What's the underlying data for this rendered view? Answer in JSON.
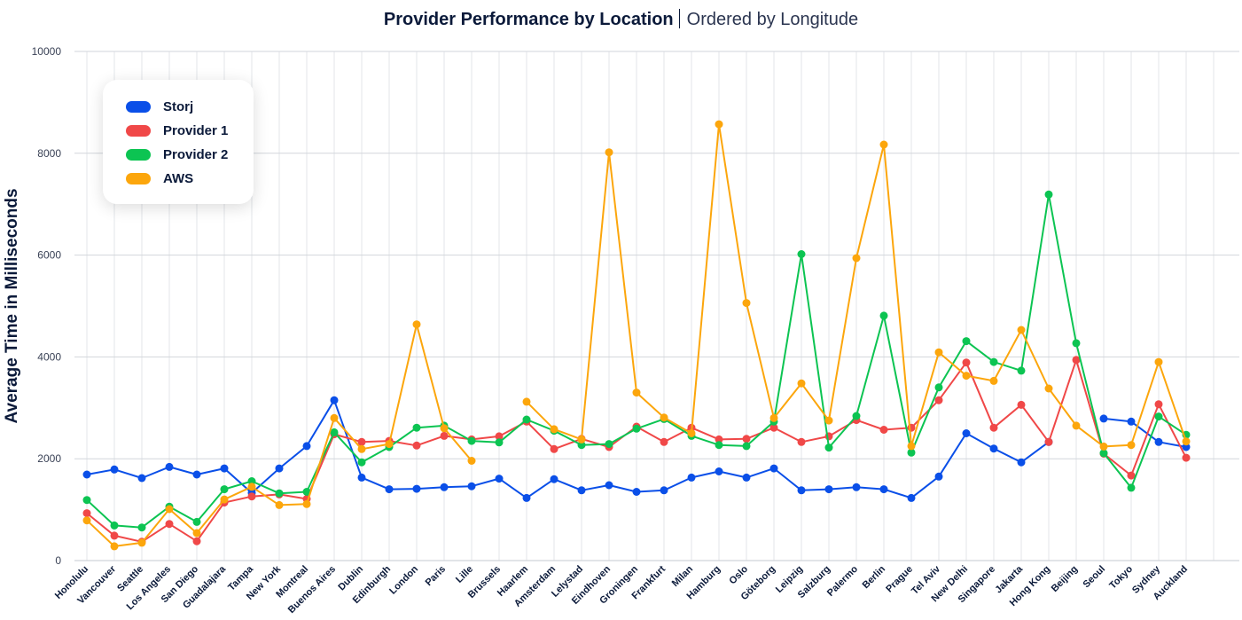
{
  "title": "Provider Performance by Location",
  "subtitle": "Ordered by Longitude",
  "legend": {
    "items": [
      {
        "label": "Storj",
        "color": "#0a4fe8"
      },
      {
        "label": "Provider 1",
        "color": "#f04848"
      },
      {
        "label": "Provider 2",
        "color": "#0cc452"
      },
      {
        "label": "AWS",
        "color": "#fca60c"
      }
    ]
  },
  "chart_data": {
    "type": "line",
    "title": "Provider Performance by Location",
    "subtitle": "Ordered by Longitude",
    "xlabel": "",
    "ylabel": "Average Time in Milliseconds",
    "ylim": [
      0,
      10000
    ],
    "yticks": [
      0,
      2000,
      4000,
      6000,
      8000,
      10000
    ],
    "grid": true,
    "legend_position": "top-left",
    "categories": [
      "Honolulu",
      "Vancouver",
      "Seattle",
      "Los Angeles",
      "San Diego",
      "Guadalajara",
      "Tampa",
      "New York",
      "Montreal",
      "Buenos Aires",
      "Dublin",
      "Edinburgh",
      "London",
      "Paris",
      "Lille",
      "Brussels",
      "Haarlem",
      "Amsterdam",
      "Lelystad",
      "Eindhoven",
      "Groningen",
      "Frankfurt",
      "Milan",
      "Hamburg",
      "Oslo",
      "Göteborg",
      "Leipzig",
      "Salzburg",
      "Palermo",
      "Berlin",
      "Prague",
      "Tel Aviv",
      "New Delhi",
      "Singapore",
      "Jakarta",
      "Hong Kong",
      "Beijing",
      "Seoul",
      "Tokyo",
      "Sydney",
      "Auckland"
    ],
    "series": [
      {
        "name": "Storj",
        "color": "#0a4fe8",
        "values": [
          1690,
          1790,
          1620,
          1840,
          1690,
          1810,
          1330,
          1810,
          2250,
          3150,
          1630,
          1400,
          1410,
          1440,
          1460,
          1610,
          1230,
          1600,
          1380,
          1480,
          1350,
          1380,
          1630,
          1750,
          1630,
          1810,
          1380,
          1400,
          1440,
          1400,
          1230,
          1650,
          2500,
          2200,
          1930,
          2330,
          null,
          2790,
          2730,
          2330,
          2230
        ]
      },
      {
        "name": "Provider 1",
        "color": "#f04848",
        "values": [
          930,
          490,
          370,
          720,
          380,
          1140,
          1260,
          1300,
          1210,
          2480,
          2330,
          2350,
          2260,
          2450,
          2380,
          2440,
          2730,
          2190,
          2390,
          2230,
          2630,
          2330,
          2610,
          2380,
          2390,
          2610,
          2330,
          2440,
          2760,
          2570,
          2610,
          3150,
          3890,
          2610,
          3060,
          2330,
          3940,
          2100,
          1670,
          3070,
          2020
        ]
      },
      {
        "name": "Provider 2",
        "color": "#0cc452",
        "values": [
          1190,
          690,
          650,
          1060,
          760,
          1400,
          1560,
          1320,
          1350,
          2520,
          1930,
          2230,
          2610,
          2650,
          2350,
          2320,
          2770,
          2550,
          2270,
          2290,
          2590,
          2780,
          2450,
          2270,
          2250,
          2730,
          6020,
          2220,
          2840,
          4810,
          2120,
          3400,
          4310,
          3900,
          3730,
          7190,
          4270,
          2110,
          1430,
          2830,
          2470
        ]
      },
      {
        "name": "AWS",
        "color": "#fca60c",
        "values": [
          790,
          280,
          350,
          1010,
          540,
          1200,
          1450,
          1090,
          1110,
          2800,
          2190,
          2290,
          4640,
          2600,
          1960,
          null,
          3120,
          2580,
          2380,
          8020,
          3300,
          2810,
          2500,
          8570,
          5060,
          2800,
          3480,
          2750,
          5940,
          8170,
          2250,
          4090,
          3630,
          3530,
          4530,
          3380,
          2650,
          2240,
          2270,
          3900,
          2340
        ]
      }
    ]
  }
}
